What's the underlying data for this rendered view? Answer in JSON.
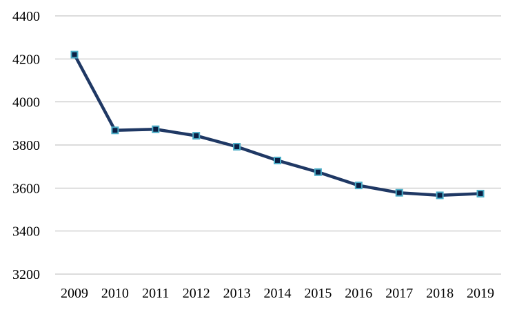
{
  "chart_data": {
    "type": "line",
    "title": "",
    "xlabel": "",
    "ylabel": "",
    "x": [
      "2009",
      "2010",
      "2011",
      "2012",
      "2013",
      "2014",
      "2015",
      "2016",
      "2017",
      "2018",
      "2019"
    ],
    "series": [
      {
        "values": [
          4220,
          3868,
          3873,
          3843,
          3792,
          3728,
          3674,
          3612,
          3578,
          3566,
          3574
        ]
      }
    ],
    "ylim": [
      3200,
      4400
    ],
    "yticks": [
      3200,
      3400,
      3600,
      3800,
      4000,
      4200,
      4400
    ],
    "grid": true,
    "legend": "none",
    "colors": {
      "line": "#1f3864",
      "marker_fill": "#0a1f44",
      "marker_edge": "#4bacc6",
      "grid": "#b8b8b8"
    }
  }
}
